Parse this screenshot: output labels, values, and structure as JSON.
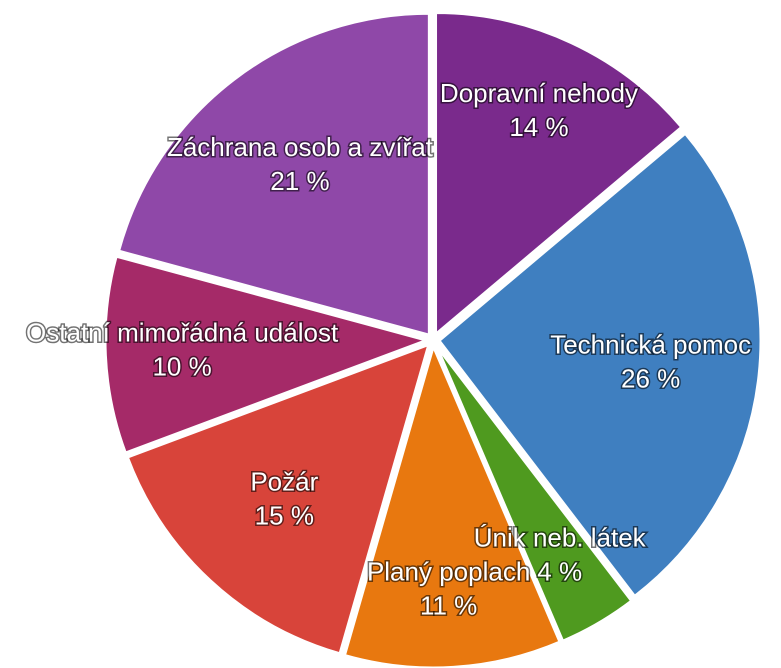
{
  "chart_data": {
    "type": "pie",
    "categories": [
      "Dopravní nehody",
      "Technická pomoc",
      "Únik neb. látek",
      "Planý poplach",
      "Požár",
      "Ostatní mimořádná událost",
      "Záchrana osob a zvířat"
    ],
    "values": [
      14,
      26,
      4,
      11,
      15,
      10,
      21
    ],
    "value_labels": [
      "14 %",
      "26 %",
      "4 %",
      "11 %",
      "15 %",
      "10 %",
      "21 %"
    ],
    "colors": [
      "#7a2a8c",
      "#3f7fc0",
      "#4f9a1f",
      "#e8780f",
      "#d8443a",
      "#a52a68",
      "#8f48a8"
    ]
  }
}
